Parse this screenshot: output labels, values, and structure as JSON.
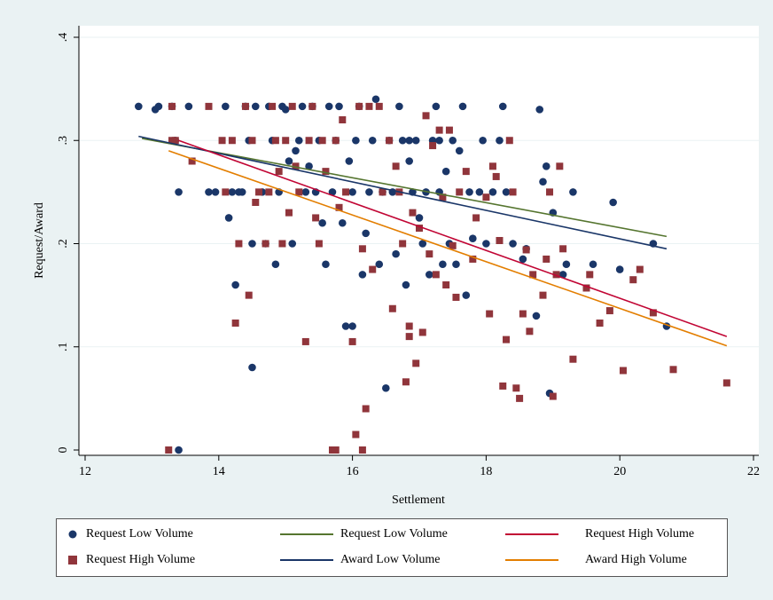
{
  "chart_data": {
    "type": "scatter",
    "title": "",
    "xlabel": "Settlement",
    "ylabel": "Request/Award",
    "xlim": [
      12,
      22
    ],
    "ylim": [
      0,
      0.4
    ],
    "x_ticks": [
      12,
      14,
      16,
      18,
      20,
      22
    ],
    "x_tick_labels": [
      "12",
      "14",
      "16",
      "18",
      "20",
      "22"
    ],
    "y_ticks": [
      0,
      0.1,
      0.2,
      0.3,
      0.4
    ],
    "y_tick_labels": [
      "0",
      ".1",
      ".2",
      ".3",
      ".4"
    ],
    "grid": "horizontal",
    "legend_position": "bottom",
    "colors": {
      "request_low_points": "#1a3668",
      "request_high_points": "#90353b",
      "fit_request_low": "#55752f",
      "fit_award_low": "#1a3668",
      "fit_request_high": "#c10534",
      "fit_award_high": "#e37e00"
    },
    "series": [
      {
        "name": "Request Low Volume",
        "kind": "scatter",
        "marker": "circle",
        "points": [
          [
            12.8,
            0.333
          ],
          [
            13.05,
            0.33
          ],
          [
            13.1,
            0.333
          ],
          [
            13.3,
            0.333
          ],
          [
            13.35,
            0.3
          ],
          [
            13.4,
            0.25
          ],
          [
            13.55,
            0.333
          ],
          [
            13.85,
            0.25
          ],
          [
            13.95,
            0.25
          ],
          [
            14.1,
            0.333
          ],
          [
            14.15,
            0.225
          ],
          [
            14.2,
            0.25
          ],
          [
            14.25,
            0.16
          ],
          [
            14.3,
            0.25
          ],
          [
            14.35,
            0.25
          ],
          [
            14.4,
            0.333
          ],
          [
            14.45,
            0.3
          ],
          [
            14.5,
            0.2
          ],
          [
            14.55,
            0.333
          ],
          [
            14.65,
            0.25
          ],
          [
            14.7,
            0.2
          ],
          [
            14.75,
            0.333
          ],
          [
            14.8,
            0.3
          ],
          [
            14.85,
            0.18
          ],
          [
            14.9,
            0.25
          ],
          [
            14.95,
            0.333
          ],
          [
            15.0,
            0.33
          ],
          [
            15.05,
            0.28
          ],
          [
            15.1,
            0.2
          ],
          [
            15.15,
            0.29
          ],
          [
            15.2,
            0.3
          ],
          [
            15.25,
            0.333
          ],
          [
            15.3,
            0.25
          ],
          [
            15.35,
            0.275
          ],
          [
            15.4,
            0.333
          ],
          [
            15.45,
            0.25
          ],
          [
            15.5,
            0.3
          ],
          [
            15.55,
            0.22
          ],
          [
            15.6,
            0.18
          ],
          [
            15.65,
            0.333
          ],
          [
            15.7,
            0.25
          ],
          [
            15.75,
            0.3
          ],
          [
            15.8,
            0.333
          ],
          [
            15.85,
            0.22
          ],
          [
            15.9,
            0.12
          ],
          [
            15.95,
            0.28
          ],
          [
            16.0,
            0.25
          ],
          [
            16.05,
            0.3
          ],
          [
            16.1,
            0.333
          ],
          [
            16.15,
            0.17
          ],
          [
            16.2,
            0.21
          ],
          [
            16.25,
            0.25
          ],
          [
            16.3,
            0.3
          ],
          [
            16.35,
            0.34
          ],
          [
            16.4,
            0.18
          ],
          [
            16.45,
            0.25
          ],
          [
            16.5,
            0.06
          ],
          [
            16.55,
            0.3
          ],
          [
            16.6,
            0.25
          ],
          [
            16.65,
            0.19
          ],
          [
            16.7,
            0.333
          ],
          [
            16.75,
            0.3
          ],
          [
            16.8,
            0.16
          ],
          [
            16.85,
            0.28
          ],
          [
            16.9,
            0.25
          ],
          [
            16.95,
            0.3
          ],
          [
            17.0,
            0.225
          ],
          [
            17.05,
            0.2
          ],
          [
            17.1,
            0.25
          ],
          [
            17.15,
            0.17
          ],
          [
            17.2,
            0.3
          ],
          [
            17.25,
            0.333
          ],
          [
            17.3,
            0.25
          ],
          [
            17.35,
            0.18
          ],
          [
            17.4,
            0.27
          ],
          [
            17.45,
            0.2
          ],
          [
            17.5,
            0.3
          ],
          [
            17.55,
            0.18
          ],
          [
            17.6,
            0.29
          ],
          [
            17.65,
            0.333
          ],
          [
            17.7,
            0.15
          ],
          [
            17.75,
            0.25
          ],
          [
            17.8,
            0.205
          ],
          [
            17.9,
            0.25
          ],
          [
            17.95,
            0.3
          ],
          [
            18.0,
            0.2
          ],
          [
            18.1,
            0.25
          ],
          [
            18.2,
            0.3
          ],
          [
            18.25,
            0.333
          ],
          [
            18.3,
            0.25
          ],
          [
            18.4,
            0.2
          ],
          [
            18.55,
            0.185
          ],
          [
            18.6,
            0.195
          ],
          [
            18.75,
            0.13
          ],
          [
            18.8,
            0.33
          ],
          [
            18.85,
            0.26
          ],
          [
            18.9,
            0.275
          ],
          [
            18.95,
            0.055
          ],
          [
            19.0,
            0.23
          ],
          [
            19.15,
            0.17
          ],
          [
            19.2,
            0.18
          ],
          [
            19.3,
            0.25
          ],
          [
            19.6,
            0.18
          ],
          [
            19.9,
            0.24
          ],
          [
            20.0,
            0.175
          ],
          [
            20.5,
            0.2
          ],
          [
            20.7,
            0.12
          ],
          [
            14.5,
            0.08
          ],
          [
            13.4,
            0.0
          ],
          [
            16.0,
            0.12
          ],
          [
            16.85,
            0.3
          ],
          [
            17.3,
            0.3
          ]
        ]
      },
      {
        "name": "Request High Volume",
        "kind": "scatter",
        "marker": "square",
        "points": [
          [
            13.25,
            0.0
          ],
          [
            13.3,
            0.333
          ],
          [
            13.35,
            0.3
          ],
          [
            13.6,
            0.28
          ],
          [
            13.85,
            0.333
          ],
          [
            14.05,
            0.3
          ],
          [
            14.1,
            0.25
          ],
          [
            14.2,
            0.3
          ],
          [
            14.25,
            0.123
          ],
          [
            14.3,
            0.2
          ],
          [
            14.4,
            0.333
          ],
          [
            14.45,
            0.15
          ],
          [
            14.5,
            0.3
          ],
          [
            14.55,
            0.24
          ],
          [
            14.6,
            0.25
          ],
          [
            14.7,
            0.2
          ],
          [
            14.75,
            0.25
          ],
          [
            14.8,
            0.333
          ],
          [
            14.85,
            0.3
          ],
          [
            14.9,
            0.27
          ],
          [
            14.95,
            0.2
          ],
          [
            15.0,
            0.3
          ],
          [
            15.05,
            0.23
          ],
          [
            15.1,
            0.333
          ],
          [
            15.15,
            0.275
          ],
          [
            15.2,
            0.25
          ],
          [
            15.3,
            0.105
          ],
          [
            15.35,
            0.3
          ],
          [
            15.4,
            0.333
          ],
          [
            15.45,
            0.225
          ],
          [
            15.5,
            0.2
          ],
          [
            15.55,
            0.3
          ],
          [
            15.6,
            0.27
          ],
          [
            15.7,
            0.0
          ],
          [
            15.75,
            0.3
          ],
          [
            15.8,
            0.235
          ],
          [
            15.85,
            0.32
          ],
          [
            15.9,
            0.25
          ],
          [
            16.0,
            0.105
          ],
          [
            16.05,
            0.015
          ],
          [
            16.1,
            0.333
          ],
          [
            16.15,
            0.195
          ],
          [
            16.2,
            0.04
          ],
          [
            16.25,
            0.333
          ],
          [
            16.3,
            0.175
          ],
          [
            16.4,
            0.333
          ],
          [
            16.45,
            0.25
          ],
          [
            16.55,
            0.3
          ],
          [
            16.6,
            0.137
          ],
          [
            16.65,
            0.275
          ],
          [
            16.7,
            0.25
          ],
          [
            16.75,
            0.2
          ],
          [
            16.8,
            0.066
          ],
          [
            16.85,
            0.12
          ],
          [
            16.9,
            0.23
          ],
          [
            16.95,
            0.084
          ],
          [
            17.0,
            0.215
          ],
          [
            17.05,
            0.114
          ],
          [
            17.1,
            0.324
          ],
          [
            17.15,
            0.19
          ],
          [
            17.2,
            0.295
          ],
          [
            17.25,
            0.17
          ],
          [
            17.3,
            0.31
          ],
          [
            17.35,
            0.245
          ],
          [
            17.4,
            0.16
          ],
          [
            17.45,
            0.31
          ],
          [
            17.5,
            0.198
          ],
          [
            17.55,
            0.148
          ],
          [
            17.6,
            0.25
          ],
          [
            17.7,
            0.27
          ],
          [
            17.8,
            0.185
          ],
          [
            17.85,
            0.225
          ],
          [
            18.0,
            0.245
          ],
          [
            18.05,
            0.132
          ],
          [
            18.1,
            0.275
          ],
          [
            18.15,
            0.265
          ],
          [
            18.2,
            0.203
          ],
          [
            18.25,
            0.062
          ],
          [
            18.3,
            0.107
          ],
          [
            18.35,
            0.3
          ],
          [
            18.4,
            0.25
          ],
          [
            18.45,
            0.06
          ],
          [
            18.5,
            0.05
          ],
          [
            18.55,
            0.132
          ],
          [
            18.6,
            0.194
          ],
          [
            18.65,
            0.115
          ],
          [
            18.7,
            0.17
          ],
          [
            18.85,
            0.15
          ],
          [
            18.9,
            0.185
          ],
          [
            18.95,
            0.25
          ],
          [
            19.0,
            0.052
          ],
          [
            19.05,
            0.17
          ],
          [
            19.1,
            0.275
          ],
          [
            19.15,
            0.195
          ],
          [
            19.3,
            0.088
          ],
          [
            19.5,
            0.157
          ],
          [
            19.55,
            0.17
          ],
          [
            19.7,
            0.123
          ],
          [
            19.85,
            0.135
          ],
          [
            20.05,
            0.077
          ],
          [
            20.2,
            0.165
          ],
          [
            20.3,
            0.175
          ],
          [
            20.5,
            0.133
          ],
          [
            20.8,
            0.078
          ],
          [
            21.6,
            0.065
          ],
          [
            15.75,
            0.0
          ],
          [
            16.15,
            0.0
          ],
          [
            13.3,
            0.3
          ],
          [
            16.85,
            0.11
          ]
        ]
      },
      {
        "name": "Request Low Volume",
        "kind": "line",
        "x": [
          12.85,
          20.7
        ],
        "y": [
          0.302,
          0.207
        ]
      },
      {
        "name": "Award Low Volume",
        "kind": "line",
        "x": [
          12.8,
          20.7
        ],
        "y": [
          0.304,
          0.195
        ]
      },
      {
        "name": "Request High Volume",
        "kind": "line",
        "x": [
          13.4,
          21.6
        ],
        "y": [
          0.3,
          0.11
        ]
      },
      {
        "name": "Award High Volume",
        "kind": "line",
        "x": [
          13.25,
          21.6
        ],
        "y": [
          0.29,
          0.101
        ]
      }
    ]
  },
  "legend": {
    "items": [
      {
        "label": "Request Low Volume",
        "swatch": "circle",
        "color": "#1a3668"
      },
      {
        "label": "Request Low Volume",
        "swatch": "line",
        "color": "#55752f"
      },
      {
        "label": "Request High Volume",
        "swatch": "line",
        "color": "#c10534"
      },
      {
        "label": "Request High Volume",
        "swatch": "square",
        "color": "#90353b"
      },
      {
        "label": "Award Low Volume",
        "swatch": "line",
        "color": "#1a3668"
      },
      {
        "label": "Award High Volume",
        "swatch": "line",
        "color": "#e37e00"
      }
    ]
  }
}
